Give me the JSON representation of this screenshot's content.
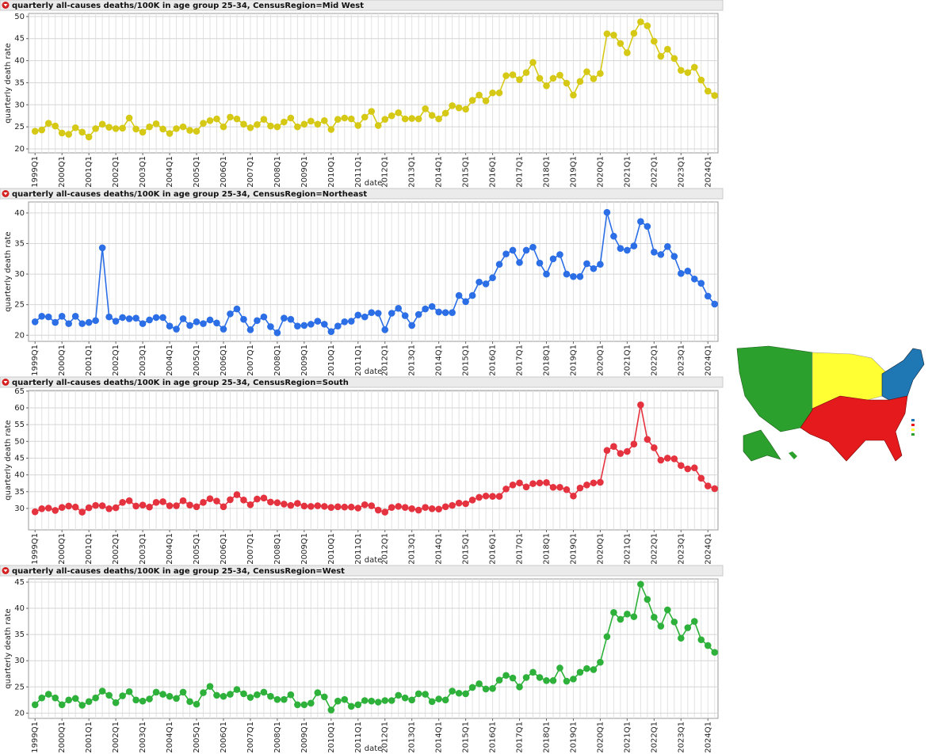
{
  "chart_data": [
    {
      "type": "line",
      "title": "quarterly all-causes deaths/100K in age group 25-34, CensusRegion=Mid West",
      "xlabel": "date",
      "ylabel": "quarterly death rate",
      "color": "#d6c916",
      "grid": true,
      "ylim": [
        19.1,
        50.7
      ],
      "yticks": [
        20,
        25,
        30,
        35,
        40,
        45,
        50
      ],
      "categories": [
        "1999Q1",
        null,
        null,
        null,
        "2000Q1",
        null,
        null,
        null,
        "2001Q1",
        null,
        null,
        null,
        "2002Q1",
        null,
        null,
        null,
        "2003Q1",
        null,
        null,
        null,
        "2004Q1",
        null,
        null,
        null,
        "2005Q1",
        null,
        null,
        null,
        "2006Q1",
        null,
        null,
        null,
        "2007Q1",
        null,
        null,
        null,
        "2008Q1",
        null,
        null,
        null,
        "2009Q1",
        null,
        null,
        null,
        "2010Q1",
        null,
        null,
        null,
        "2011Q1",
        null,
        null,
        null,
        "2012Q1",
        null,
        null,
        null,
        "2013Q1",
        null,
        null,
        null,
        "2014Q1",
        null,
        null,
        null,
        "2015Q1",
        null,
        null,
        null,
        "2016Q1",
        null,
        null,
        null,
        "2017Q1",
        null,
        null,
        null,
        "2018Q1",
        null,
        null,
        null,
        "2019Q1",
        null,
        null,
        null,
        "2020Q1",
        null,
        null,
        null,
        "2021Q1",
        null,
        null,
        null,
        "2022Q1",
        null,
        null,
        null,
        "2023Q1",
        null,
        null,
        null,
        "2024Q1",
        null
      ],
      "values": [
        24.0,
        24.3,
        25.8,
        25.2,
        23.6,
        23.3,
        24.8,
        23.8,
        22.7,
        24.6,
        25.6,
        24.9,
        24.6,
        24.7,
        27.0,
        24.5,
        23.8,
        25.0,
        25.7,
        24.5,
        23.5,
        24.6,
        25.0,
        24.2,
        24.0,
        25.8,
        26.4,
        26.8,
        25.0,
        27.2,
        26.8,
        25.6,
        24.8,
        25.5,
        26.7,
        25.2,
        25.0,
        26.1,
        27.0,
        25.0,
        25.6,
        26.3,
        25.6,
        26.4,
        24.4,
        26.7,
        27.0,
        26.8,
        25.3,
        27.2,
        28.5,
        25.3,
        26.7,
        27.5,
        28.2,
        26.8,
        26.9,
        26.8,
        29.1,
        27.6,
        26.8,
        28.1,
        29.8,
        29.3,
        29.0,
        31.0,
        32.2,
        30.9,
        32.7,
        32.7,
        36.6,
        36.8,
        35.7,
        37.3,
        39.6,
        36.0,
        34.3,
        36.0,
        36.7,
        34.9,
        32.2,
        35.3,
        37.5,
        35.9,
        37.1,
        46.1,
        45.8,
        43.9,
        41.8,
        46.2,
        48.8,
        47.9,
        44.4,
        41.0,
        42.6,
        40.5,
        37.8,
        37.3,
        38.5,
        35.6,
        33.1,
        32.1
      ]
    },
    {
      "type": "line",
      "title": "quarterly all-causes deaths/100K in age group 25-34, CensusRegion=Northeast",
      "xlabel": "date",
      "ylabel": "quarterly death rate",
      "color": "#2b6ee6",
      "grid": true,
      "ylim": [
        19.0,
        41.8
      ],
      "yticks": [
        20,
        25,
        30,
        35,
        40
      ],
      "categories": [
        "1999Q1",
        null,
        null,
        null,
        "2000Q1",
        null,
        null,
        null,
        "2001Q1",
        null,
        null,
        null,
        "2002Q1",
        null,
        null,
        null,
        "2003Q1",
        null,
        null,
        null,
        "2004Q1",
        null,
        null,
        null,
        "2005Q1",
        null,
        null,
        null,
        "2006Q1",
        null,
        null,
        null,
        "2007Q1",
        null,
        null,
        null,
        "2008Q1",
        null,
        null,
        null,
        "2009Q1",
        null,
        null,
        null,
        "2010Q1",
        null,
        null,
        null,
        "2011Q1",
        null,
        null,
        null,
        "2012Q1",
        null,
        null,
        null,
        "2013Q1",
        null,
        null,
        null,
        "2014Q1",
        null,
        null,
        null,
        "2015Q1",
        null,
        null,
        null,
        "2016Q1",
        null,
        null,
        null,
        "2017Q1",
        null,
        null,
        null,
        "2018Q1",
        null,
        null,
        null,
        "2019Q1",
        null,
        null,
        null,
        "2020Q1",
        null,
        null,
        null,
        "2021Q1",
        null,
        null,
        null,
        "2022Q1",
        null,
        null,
        null,
        "2023Q1",
        null,
        null,
        null,
        "2024Q1",
        null
      ],
      "values": [
        22.2,
        23.1,
        23.0,
        22.1,
        23.1,
        21.9,
        23.1,
        21.9,
        22.1,
        22.4,
        34.3,
        23.0,
        22.3,
        22.9,
        22.7,
        22.8,
        21.9,
        22.5,
        22.9,
        22.9,
        21.5,
        21.0,
        22.7,
        21.6,
        22.2,
        21.9,
        22.5,
        22.0,
        21.0,
        23.5,
        24.3,
        22.6,
        20.9,
        22.4,
        23.0,
        21.4,
        20.4,
        22.8,
        22.6,
        21.5,
        21.6,
        21.8,
        22.3,
        21.8,
        20.6,
        21.5,
        22.2,
        22.3,
        23.3,
        23.0,
        23.7,
        23.6,
        20.9,
        23.6,
        24.4,
        23.2,
        21.6,
        23.4,
        24.3,
        24.7,
        23.8,
        23.7,
        23.7,
        26.5,
        25.5,
        26.5,
        28.7,
        28.4,
        29.4,
        31.6,
        33.3,
        33.9,
        31.9,
        33.9,
        34.4,
        31.8,
        30.0,
        32.5,
        33.2,
        30.0,
        29.6,
        29.6,
        31.7,
        30.9,
        31.6,
        40.1,
        36.2,
        34.2,
        33.9,
        34.6,
        38.6,
        37.8,
        33.6,
        33.2,
        34.5,
        32.9,
        30.1,
        30.5,
        29.2,
        28.5,
        26.4,
        25.1
      ]
    },
    {
      "type": "line",
      "title": "quarterly all-causes deaths/100K in age group 25-34, CensusRegion=South",
      "xlabel": "date",
      "ylabel": "quarterly death rate",
      "color": "#e5323f",
      "grid": true,
      "ylim": [
        23.6,
        65.2
      ],
      "yticks": [
        30,
        35,
        40,
        45,
        50,
        55,
        60,
        65
      ],
      "categories": [
        "1999Q1",
        null,
        null,
        null,
        "2000Q1",
        null,
        null,
        null,
        "2001Q1",
        null,
        null,
        null,
        "2002Q1",
        null,
        null,
        null,
        "2003Q1",
        null,
        null,
        null,
        "2004Q1",
        null,
        null,
        null,
        "2005Q1",
        null,
        null,
        null,
        "2006Q1",
        null,
        null,
        null,
        "2007Q1",
        null,
        null,
        null,
        "2008Q1",
        null,
        null,
        null,
        "2009Q1",
        null,
        null,
        null,
        "2010Q1",
        null,
        null,
        null,
        "2011Q1",
        null,
        null,
        null,
        "2012Q1",
        null,
        null,
        null,
        "2013Q1",
        null,
        null,
        null,
        "2014Q1",
        null,
        null,
        null,
        "2015Q1",
        null,
        null,
        null,
        "2016Q1",
        null,
        null,
        null,
        "2017Q1",
        null,
        null,
        null,
        "2018Q1",
        null,
        null,
        null,
        "2019Q1",
        null,
        null,
        null,
        "2020Q1",
        null,
        null,
        null,
        "2021Q1",
        null,
        null,
        null,
        "2022Q1",
        null,
        null,
        null,
        "2023Q1",
        null,
        null,
        null,
        "2024Q1",
        null
      ],
      "values": [
        29.0,
        29.9,
        30.1,
        29.4,
        30.3,
        30.7,
        30.4,
        28.9,
        30.2,
        30.9,
        30.8,
        29.9,
        30.2,
        31.8,
        32.3,
        30.7,
        31.0,
        30.4,
        31.8,
        32.0,
        30.8,
        30.8,
        32.3,
        31.0,
        30.5,
        31.8,
        32.9,
        32.2,
        30.5,
        32.6,
        34.1,
        32.5,
        31.1,
        32.8,
        33.1,
        31.9,
        31.7,
        31.3,
        30.9,
        31.5,
        30.7,
        30.6,
        30.8,
        30.6,
        30.3,
        30.5,
        30.4,
        30.4,
        30.1,
        31.1,
        30.8,
        29.5,
        28.9,
        30.3,
        30.6,
        30.3,
        29.9,
        29.5,
        30.3,
        29.9,
        29.8,
        30.5,
        30.9,
        31.6,
        31.4,
        32.5,
        33.3,
        33.7,
        33.6,
        33.6,
        35.8,
        37.0,
        37.6,
        36.4,
        37.4,
        37.6,
        37.7,
        36.3,
        36.3,
        35.6,
        33.7,
        36.1,
        37.0,
        37.6,
        37.8,
        47.3,
        48.5,
        46.4,
        47.0,
        49.2,
        60.9,
        50.6,
        48.1,
        44.4,
        45.0,
        44.8,
        42.8,
        41.8,
        42.1,
        39.0,
        36.7,
        35.9
      ]
    },
    {
      "type": "line",
      "title": "quarterly all-causes deaths/100K in age group 25-34, CensusRegion=West",
      "xlabel": "date",
      "ylabel": "quarterly death rate",
      "color": "#2eb13a",
      "grid": true,
      "ylim": [
        19.0,
        45.6
      ],
      "yticks": [
        20,
        25,
        30,
        35,
        40,
        45
      ],
      "categories": [
        "1999Q1",
        null,
        null,
        null,
        "2000Q1",
        null,
        null,
        null,
        "2001Q1",
        null,
        null,
        null,
        "2002Q1",
        null,
        null,
        null,
        "2003Q1",
        null,
        null,
        null,
        "2004Q1",
        null,
        null,
        null,
        "2005Q1",
        null,
        null,
        null,
        "2006Q1",
        null,
        null,
        null,
        "2007Q1",
        null,
        null,
        null,
        "2008Q1",
        null,
        null,
        null,
        "2009Q1",
        null,
        null,
        null,
        "2010Q1",
        null,
        null,
        null,
        "2011Q1",
        null,
        null,
        null,
        "2012Q1",
        null,
        null,
        null,
        "2013Q1",
        null,
        null,
        null,
        "2014Q1",
        null,
        null,
        null,
        "2015Q1",
        null,
        null,
        null,
        "2016Q1",
        null,
        null,
        null,
        "2017Q1",
        null,
        null,
        null,
        "2018Q1",
        null,
        null,
        null,
        "2019Q1",
        null,
        null,
        null,
        "2020Q1",
        null,
        null,
        null,
        "2021Q1",
        null,
        null,
        null,
        "2022Q1",
        null,
        null,
        null,
        "2023Q1",
        null,
        null,
        null,
        "2024Q1",
        null
      ],
      "values": [
        21.6,
        22.9,
        23.6,
        22.9,
        21.6,
        22.5,
        22.8,
        21.5,
        22.2,
        22.9,
        24.2,
        23.4,
        22.0,
        23.3,
        24.1,
        22.5,
        22.3,
        22.7,
        24.0,
        23.6,
        23.2,
        22.8,
        24.0,
        22.2,
        21.7,
        23.9,
        25.1,
        23.4,
        23.2,
        23.6,
        24.5,
        23.7,
        23.0,
        23.5,
        24.0,
        23.2,
        22.6,
        22.6,
        23.5,
        21.6,
        21.6,
        21.9,
        23.9,
        23.1,
        20.6,
        22.3,
        22.6,
        21.3,
        21.6,
        22.4,
        22.3,
        22.1,
        22.4,
        22.4,
        23.4,
        22.9,
        22.5,
        23.7,
        23.6,
        22.2,
        22.7,
        22.5,
        24.2,
        23.8,
        23.7,
        24.9,
        25.6,
        24.6,
        24.7,
        26.3,
        27.2,
        26.7,
        25.0,
        26.8,
        27.8,
        26.8,
        26.2,
        26.2,
        28.6,
        26.1,
        26.5,
        27.8,
        28.5,
        28.3,
        29.7,
        34.6,
        39.2,
        37.9,
        38.9,
        38.4,
        44.6,
        41.7,
        38.3,
        36.6,
        39.7,
        37.4,
        34.3,
        36.3,
        37.5,
        34.0,
        32.9,
        31.6
      ]
    }
  ]
}
